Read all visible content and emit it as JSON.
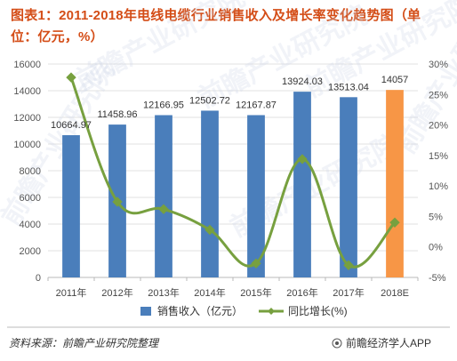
{
  "header": {
    "title": "图表1：2011-2018年电线电缆行业销售收入及增长率变化趋势图（单位：亿元，%）"
  },
  "footer": {
    "source": "资料来源：前瞻产业研究院整理",
    "brand": "前瞻经济学人APP"
  },
  "watermarks": {
    "text": "前瞻产业研究院"
  },
  "chart_data": {
    "type": "bar",
    "title": "图表1：2011-2018年电线电缆行业销售收入及增长率变化趋势图（单位：亿元，%）",
    "categories": [
      "2011年",
      "2012年",
      "2013年",
      "2014年",
      "2015年",
      "2016年",
      "2017年",
      "2018E"
    ],
    "series": [
      {
        "name": "销售收入（亿元）",
        "type": "bar",
        "axis": "left",
        "values": [
          10664.97,
          11458.96,
          12166.95,
          12502.72,
          12167.87,
          13924.03,
          13513.04,
          14057
        ],
        "labels": [
          "10664.97",
          "11458.96",
          "12166.95",
          "12502.72",
          "12167.87",
          "13924.03",
          "13513.04",
          "14057"
        ],
        "color": "#4a7ebb",
        "highlight_color": "#f79646",
        "highlight_index": 7
      },
      {
        "name": "同比增长(%)",
        "type": "line",
        "axis": "right",
        "values": [
          27.8,
          7.4,
          6.2,
          2.8,
          -2.7,
          14.4,
          -3.0,
          4.0
        ],
        "color": "#77a03f"
      }
    ],
    "left_axis": {
      "min": 0,
      "max": 16000,
      "step": 2000,
      "tick_labels": [
        "0",
        "2000",
        "4000",
        "6000",
        "8000",
        "10000",
        "12000",
        "14000",
        "16000"
      ]
    },
    "right_axis": {
      "min": -5,
      "max": 30,
      "step": 5,
      "tick_labels": [
        "-5%",
        "0%",
        "5%",
        "10%",
        "15%",
        "20%",
        "25%",
        "30%"
      ]
    },
    "grid": true,
    "legend": "bottom"
  }
}
